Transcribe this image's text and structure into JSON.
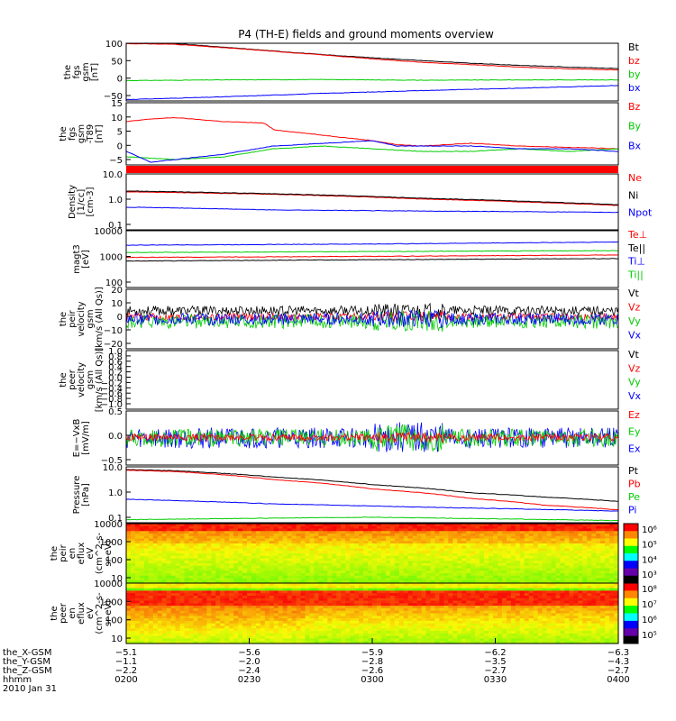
{
  "title": "P4 (TH-E) fields and ground moments overview",
  "chart_data": {
    "type": "line",
    "title": "P4 (TH-E) fields and ground moments overview",
    "x_ticks": [
      "0200",
      "0230",
      "0300",
      "0330",
      "0400"
    ],
    "date": "2010 Jan 31",
    "panels": [
      {
        "id": "fgs",
        "ylabel": [
          "the",
          "fgs",
          "gsm",
          "[nT]"
        ],
        "yticks": [
          "100",
          "50",
          "0",
          "−50"
        ],
        "ylim": [
          -62,
          105
        ],
        "legend": [
          "Bt",
          "bz",
          "by",
          "bx"
        ],
        "series": [
          {
            "name": "Bt",
            "color": "#000000",
            "x": [
              0,
              0.1,
              0.25,
              0.4,
              0.5,
              0.6,
              0.7,
              0.8,
              0.9,
              1.0
            ],
            "y": [
              105,
              104,
              88,
              72,
              63,
              55,
              47,
              41,
              36,
              32
            ]
          },
          {
            "name": "bz",
            "color": "#ff0000",
            "x": [
              0,
              0.1,
              0.25,
              0.4,
              0.5,
              0.6,
              0.7,
              0.8,
              0.9,
              1.0
            ],
            "y": [
              104,
              102,
              87,
              71,
              60,
              50,
              43,
              36,
              31,
              28
            ]
          },
          {
            "name": "by",
            "color": "#00cc00",
            "x": [
              0,
              0.2,
              0.4,
              0.6,
              0.8,
              1.0
            ],
            "y": [
              -3,
              -1,
              0,
              -2,
              -1,
              -1
            ]
          },
          {
            "name": "bx",
            "color": "#0000ff",
            "x": [
              0,
              0.2,
              0.4,
              0.6,
              0.8,
              1.0
            ],
            "y": [
              -58,
              -50,
              -40,
              -32,
              -25,
              -17
            ]
          }
        ]
      },
      {
        "id": "fgs-t89",
        "ylabel": [
          "the",
          "fgs",
          "gsm",
          "-T89",
          "[nT]"
        ],
        "yticks": [
          "15",
          "10",
          "5",
          "0",
          "−5"
        ],
        "ylim": [
          -6,
          17
        ],
        "legend": [
          "Bz",
          "By",
          "Bx"
        ],
        "series": [
          {
            "name": "Bz",
            "color": "#ff0000",
            "x": [
              0,
              0.05,
              0.1,
              0.2,
              0.28,
              0.3,
              0.4,
              0.5,
              0.55,
              0.6,
              0.7,
              0.8,
              0.9,
              1.0
            ],
            "y": [
              10,
              11,
              11.5,
              10,
              9.5,
              7,
              5,
              3,
              1.5,
              1,
              2,
              1,
              0.5,
              0
            ]
          },
          {
            "name": "By",
            "color": "#00cc00",
            "x": [
              0,
              0.1,
              0.2,
              0.3,
              0.4,
              0.5,
              0.6,
              0.7,
              0.8,
              0.9,
              1.0
            ],
            "y": [
              -3,
              -4,
              -3,
              0,
              1,
              0,
              -1,
              -1,
              0,
              -1,
              0
            ]
          },
          {
            "name": "Bx",
            "color": "#0000ff",
            "x": [
              0,
              0.05,
              0.1,
              0.2,
              0.3,
              0.4,
              0.5,
              0.55,
              0.6,
              0.7,
              0.8,
              0.9,
              1.0
            ],
            "y": [
              -1,
              -5,
              -4,
              -2,
              1,
              2,
              3,
              1,
              1,
              1,
              0,
              0,
              -1
            ]
          }
        ]
      },
      {
        "id": "density",
        "ylabel": [
          "Density",
          "[1/cc]",
          "[cm-3]"
        ],
        "yticks": [
          "10.0",
          "1.0",
          "0.1"
        ],
        "ylim": [
          0.1,
          12
        ],
        "log": true,
        "legend": [
          "Ne",
          "Ni",
          "Npot"
        ],
        "series": [
          {
            "name": "Ne",
            "color": "#ff0000",
            "x": [
              0,
              0.3,
              0.6,
              1.0
            ],
            "y": [
              2.6,
              2.1,
              1.4,
              0.8
            ]
          },
          {
            "name": "Ni",
            "color": "#000000",
            "x": [
              0,
              0.3,
              0.6,
              1.0
            ],
            "y": [
              2.8,
              2.2,
              1.5,
              0.85
            ]
          },
          {
            "name": "Npot",
            "color": "#0000ff",
            "x": [
              0,
              0.3,
              0.6,
              1.0
            ],
            "y": [
              0.7,
              0.55,
              0.5,
              0.45
            ]
          }
        ]
      },
      {
        "id": "temp",
        "ylabel": [
          "magt3",
          "[eV]"
        ],
        "yticks": [
          "10000",
          "1000",
          "100"
        ],
        "ylim": [
          100,
          10000
        ],
        "log": true,
        "legend": [
          "Te⊥",
          "Te||",
          "Ti⊥",
          "Ti||"
        ],
        "series": [
          {
            "name": "Te⊥",
            "color": "#ff0000",
            "x": [
              0,
              0.5,
              1.0
            ],
            "y": [
              1150,
              1250,
              1400
            ]
          },
          {
            "name": "Te||",
            "color": "#000000",
            "x": [
              0,
              0.5,
              1.0
            ],
            "y": [
              850,
              950,
              1050
            ]
          },
          {
            "name": "Ti⊥",
            "color": "#0000ff",
            "x": [
              0,
              0.5,
              1.0
            ],
            "y": [
              3100,
              3400,
              4000
            ]
          },
          {
            "name": "Ti||",
            "color": "#00cc00",
            "x": [
              0,
              0.5,
              1.0
            ],
            "y": [
              1700,
              1850,
              2000
            ]
          }
        ]
      },
      {
        "id": "peir-velocity",
        "ylabel": [
          "the",
          "peir",
          "velocity",
          "gsm",
          "[km/s (All Qs)]"
        ],
        "yticks": [
          "20",
          "10",
          "0",
          "−10",
          "−20"
        ],
        "ylim": [
          -25,
          25
        ],
        "legend": [
          "Vt",
          "Vz",
          "Vy",
          "Vx"
        ],
        "noise": [
          {
            "name": "Vt",
            "color": "#000000",
            "base": 7,
            "amp": 4
          },
          {
            "name": "Vz",
            "color": "#ff0000",
            "base": 2,
            "amp": 3
          },
          {
            "name": "Vy",
            "color": "#00cc00",
            "base": -2,
            "amp": 6
          },
          {
            "name": "Vx",
            "color": "#0000ff",
            "base": 0,
            "amp": 5
          }
        ]
      },
      {
        "id": "peer-velocity",
        "ylabel": [
          "the",
          "peer",
          "velocity",
          "gsm",
          "[km/s (All Qs)]"
        ],
        "yticks": [
          "1.0",
          "0.8",
          "0.6",
          "0.4",
          "0.2",
          "0.0",
          "−0.2",
          "−0.4",
          "−0.6",
          "−0.8",
          "−1.0"
        ],
        "ylim": [
          -1,
          1
        ],
        "legend": [
          "Vt",
          "Vz",
          "Vy",
          "Vx"
        ],
        "series": []
      },
      {
        "id": "efield",
        "ylabel": [
          "E=−VxB",
          "[mV/m]"
        ],
        "yticks": [
          "0.5",
          "0.0",
          "−0.5"
        ],
        "ylim": [
          -0.9,
          0.9
        ],
        "legend": [
          "Ez",
          "Ey",
          "Ex"
        ],
        "noise": [
          {
            "name": "Ex",
            "color": "#0000ff",
            "base": 0,
            "amp": 0.35
          },
          {
            "name": "Ey",
            "color": "#00cc00",
            "base": 0,
            "amp": 0.3
          },
          {
            "name": "Ez",
            "color": "#ff0000",
            "base": 0.02,
            "amp": 0.12
          }
        ]
      },
      {
        "id": "pressure",
        "ylabel": [
          "Pressure",
          "[nPa]"
        ],
        "yticks": [
          "10.0",
          "1.0",
          "0.1"
        ],
        "ylim": [
          0.1,
          12
        ],
        "log": true,
        "legend": [
          "Pt",
          "Pb",
          "Pe",
          "Pi"
        ],
        "series": [
          {
            "name": "Pt",
            "color": "#000000",
            "x": [
              0,
              0.1,
              0.3,
              0.5,
              0.7,
              0.85,
              1.0
            ],
            "y": [
              9.5,
              8.6,
              5.0,
              2.6,
              1.3,
              0.9,
              0.62
            ]
          },
          {
            "name": "Pb",
            "color": "#ff0000",
            "x": [
              0,
              0.1,
              0.3,
              0.5,
              0.7,
              0.85,
              1.0
            ],
            "y": [
              9.0,
              8.0,
              4.0,
              1.8,
              0.8,
              0.45,
              0.3
            ]
          },
          {
            "name": "Pe",
            "color": "#00cc00",
            "x": [
              0,
              0.5,
              1.0
            ],
            "y": [
              0.13,
              0.16,
              0.12
            ]
          },
          {
            "name": "Pi",
            "color": "#0000ff",
            "x": [
              0,
              0.3,
              0.6,
              1.0
            ],
            "y": [
              0.75,
              0.5,
              0.38,
              0.27
            ]
          }
        ]
      },
      {
        "id": "peir-eflux",
        "type": "heatmap",
        "ylabel": [
          "the",
          "peir",
          "en",
          "eflux",
          "eV",
          "(cm^2-s-",
          "sr-eV)"
        ],
        "yticks": [
          "10000",
          "1000",
          "100",
          "10"
        ],
        "colorbar_ticks": [
          "10⁶",
          "10⁵",
          "10⁴",
          "10³"
        ]
      },
      {
        "id": "peer-eflux",
        "type": "heatmap",
        "ylabel": [
          "the",
          "peer",
          "en",
          "eflux",
          "eV",
          "(cm^2-s-",
          "sr-eV)"
        ],
        "yticks": [
          "10000",
          "1000",
          "100",
          "10"
        ],
        "colorbar_ticks": [
          "10⁸",
          "10⁷",
          "10⁶",
          "10⁵"
        ]
      }
    ],
    "ephemeris": {
      "labels": [
        "the_X-GSM",
        "the_Y-GSM",
        "the_Z-GSM",
        "hhmm"
      ],
      "rows": [
        [
          "−5.1",
          "−5.6",
          "−5.9",
          "−6.2",
          "−6.3"
        ],
        [
          "−1.1",
          "−2.0",
          "−2.8",
          "−3.5",
          "−4.3"
        ],
        [
          "−2.2",
          "−2.4",
          "−2.6",
          "−2.7",
          "−2.7"
        ],
        [
          "0200",
          "0230",
          "0300",
          "0330",
          "0400"
        ]
      ]
    }
  }
}
